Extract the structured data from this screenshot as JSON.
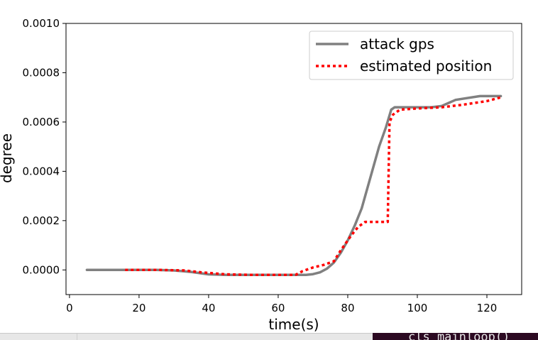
{
  "chart_data": {
    "type": "line",
    "title": "",
    "xlabel": "time(s)",
    "ylabel": "degree",
    "xlim": [
      -1,
      130
    ],
    "ylim": [
      -0.0001,
      0.001
    ],
    "xticks": [
      0,
      20,
      40,
      60,
      80,
      100,
      120
    ],
    "xtick_labels": [
      "0",
      "20",
      "40",
      "60",
      "80",
      "100",
      "120"
    ],
    "yticks": [
      0,
      0.0002,
      0.0004,
      0.0006,
      0.0008,
      0.001
    ],
    "ytick_labels": [
      "0.0000",
      "0.0002",
      "0.0004",
      "0.0006",
      "0.0008",
      "0.0010"
    ],
    "grid": false,
    "legend_position": "top-right",
    "series": [
      {
        "name": "attack gps",
        "color": "#808080",
        "style": "solid",
        "points": [
          [
            5,
            0
          ],
          [
            15,
            0
          ],
          [
            25,
            0
          ],
          [
            30,
            -2e-06
          ],
          [
            35,
            -8e-06
          ],
          [
            40,
            -1.8e-05
          ],
          [
            45,
            -2e-05
          ],
          [
            55,
            -2e-05
          ],
          [
            65,
            -2e-05
          ],
          [
            68,
            -2e-05
          ],
          [
            70,
            -1.7e-05
          ],
          [
            72,
            -1e-05
          ],
          [
            74,
            5e-06
          ],
          [
            76,
            3e-05
          ],
          [
            78,
            7e-05
          ],
          [
            80,
            0.00012
          ],
          [
            82,
            0.00018
          ],
          [
            84,
            0.00025
          ],
          [
            85,
            0.0003
          ],
          [
            87,
            0.0004
          ],
          [
            89,
            0.0005
          ],
          [
            91,
            0.00058
          ],
          [
            92.5,
            0.00065
          ],
          [
            93.5,
            0.00066
          ],
          [
            97,
            0.00066
          ],
          [
            104,
            0.00066
          ],
          [
            107,
            0.000665
          ],
          [
            111,
            0.00069
          ],
          [
            118,
            0.000705
          ],
          [
            124,
            0.000705
          ]
        ]
      },
      {
        "name": "estimated position",
        "color": "#ff0000",
        "style": "dotted",
        "points": [
          [
            16,
            0
          ],
          [
            26,
            0
          ],
          [
            33,
            -2e-06
          ],
          [
            38,
            -1e-05
          ],
          [
            45,
            -1.8e-05
          ],
          [
            52,
            -2e-05
          ],
          [
            60,
            -2e-05
          ],
          [
            65,
            -2e-05
          ],
          [
            67,
            -5e-06
          ],
          [
            70,
            1e-05
          ],
          [
            73,
            2e-05
          ],
          [
            76,
            3.5e-05
          ],
          [
            78,
            8e-05
          ],
          [
            81,
            0.00014
          ],
          [
            83,
            0.000175
          ],
          [
            85,
            0.000195
          ],
          [
            91.5,
            0.000195
          ],
          [
            92,
            0.0006
          ],
          [
            93,
            0.00063
          ],
          [
            95,
            0.00065
          ],
          [
            100,
            0.000655
          ],
          [
            107,
            0.00066
          ],
          [
            113,
            0.00067
          ],
          [
            120,
            0.000685
          ],
          [
            124,
            0.0007
          ]
        ]
      }
    ]
  },
  "background_window": {
    "terminal_text": "cls_mainloop()"
  }
}
